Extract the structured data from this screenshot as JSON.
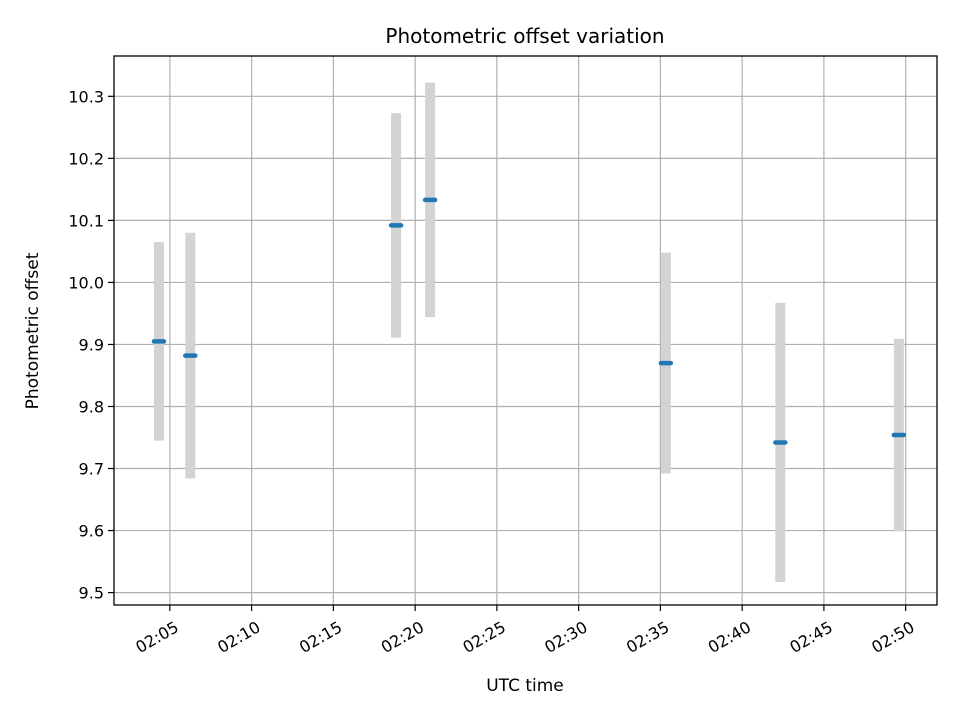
{
  "chart_data": {
    "type": "scatter",
    "title": "Photometric offset variation",
    "xlabel": "UTC time",
    "ylabel": "Photometric offset",
    "x_ticks": [
      "02:05",
      "02:10",
      "02:15",
      "02:20",
      "02:25",
      "02:30",
      "02:35",
      "02:40",
      "02:45",
      "02:50"
    ],
    "y_ticks": [
      "9.5",
      "9.6",
      "9.7",
      "9.8",
      "9.9",
      "10.0",
      "10.1",
      "10.2",
      "10.3"
    ],
    "xlim": [
      "02:01:35",
      "02:51:55"
    ],
    "ylim": [
      9.48,
      10.365
    ],
    "grid": true,
    "series": [
      {
        "points": [
          {
            "x": "02:04:20",
            "y": 9.905,
            "yerr": 0.16
          },
          {
            "x": "02:06:15",
            "y": 9.882,
            "yerr": 0.198
          },
          {
            "x": "02:18:50",
            "y": 10.092,
            "yerr": 0.181
          },
          {
            "x": "02:20:55",
            "y": 10.133,
            "yerr": 0.189
          },
          {
            "x": "02:35:20",
            "y": 9.87,
            "yerr": 0.178
          },
          {
            "x": "02:42:20",
            "y": 9.742,
            "yerr": 0.225
          },
          {
            "x": "02:49:35",
            "y": 9.754,
            "yerr": 0.155
          }
        ]
      }
    ],
    "colors": {
      "marker": "#1f77b4",
      "errorbar": "#d3d3d3",
      "grid": "#b0b0b0",
      "axes": "#000000"
    }
  }
}
